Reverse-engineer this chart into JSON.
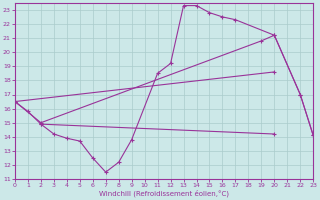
{
  "xlabel": "Windchill (Refroidissement éolien,°C)",
  "bg_color": "#cce8e8",
  "grid_color": "#aacccc",
  "line_color": "#993399",
  "xlim": [
    0,
    23
  ],
  "ylim": [
    11,
    23.5
  ],
  "xticks": [
    0,
    1,
    2,
    3,
    4,
    5,
    6,
    7,
    8,
    9,
    10,
    11,
    12,
    13,
    14,
    15,
    16,
    17,
    18,
    19,
    20,
    21,
    22,
    23
  ],
  "yticks": [
    11,
    12,
    13,
    14,
    15,
    16,
    17,
    18,
    19,
    20,
    21,
    22,
    23
  ],
  "curves": [
    {
      "x": [
        0,
        1,
        2,
        3,
        4,
        5,
        6,
        7,
        8,
        9,
        11,
        12,
        13,
        14,
        15,
        16,
        17,
        20,
        22,
        23
      ],
      "y": [
        16.5,
        15.8,
        14.9,
        14.2,
        13.9,
        13.7,
        12.5,
        11.5,
        12.2,
        13.8,
        18.5,
        19.2,
        23.3,
        23.3,
        22.8,
        22.5,
        22.3,
        21.2,
        17.0,
        14.1
      ]
    },
    {
      "x": [
        0,
        2,
        19,
        20,
        22,
        23
      ],
      "y": [
        16.5,
        15.0,
        20.8,
        21.2,
        17.0,
        14.1
      ]
    },
    {
      "x": [
        2,
        20
      ],
      "y": [
        14.9,
        14.2
      ]
    },
    {
      "x": [
        0,
        20
      ],
      "y": [
        16.5,
        18.6
      ]
    }
  ]
}
